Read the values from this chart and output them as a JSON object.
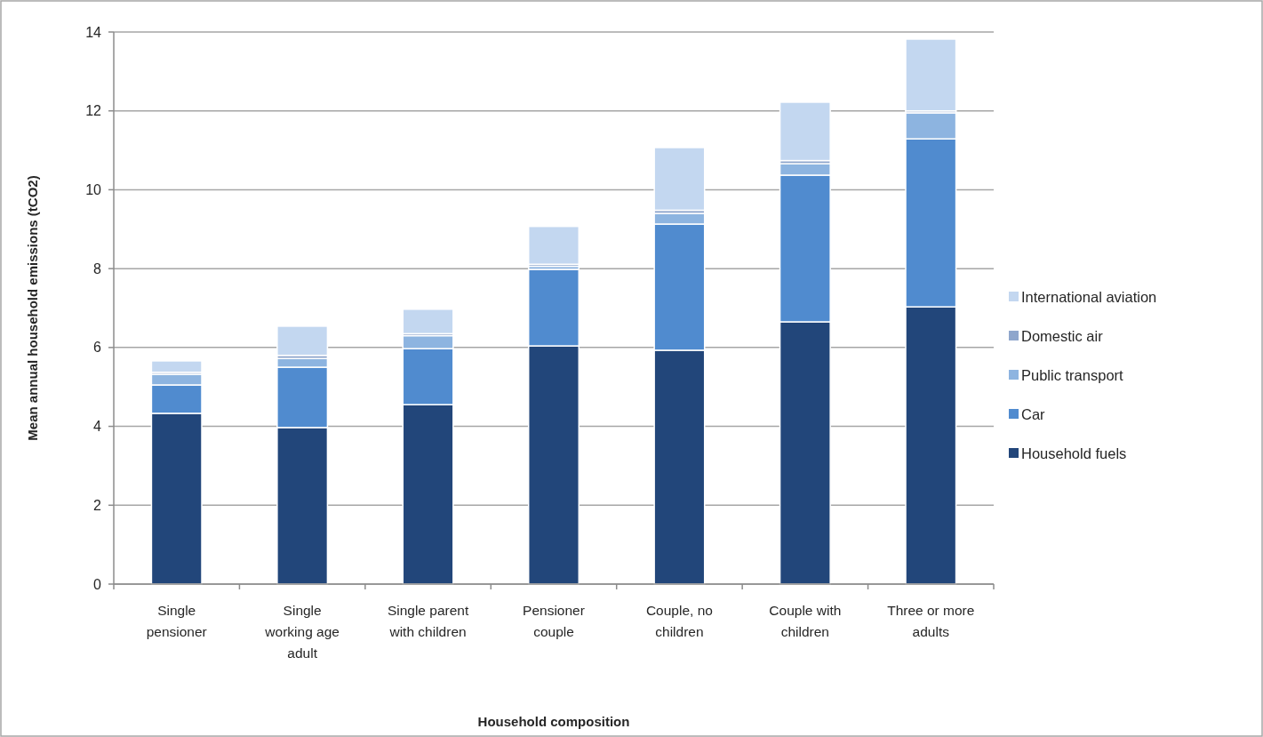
{
  "chart_data": {
    "type": "bar",
    "stacked": true,
    "xlabel": "Household composition",
    "ylabel": "Mean annual household emissions (tCO2)",
    "categories": [
      "Single pensioner",
      "Single working age adult",
      "Single parent with children",
      "Pensioner couple",
      "Couple, no children",
      "Couple with children",
      "Three or more adults"
    ],
    "series": [
      {
        "name": "Household fuels",
        "color": "#22467a",
        "values": [
          4.33,
          3.97,
          4.55,
          6.04,
          5.93,
          6.65,
          7.03
        ]
      },
      {
        "name": "Car",
        "color": "#508bcf",
        "values": [
          0.72,
          1.53,
          1.42,
          1.94,
          3.2,
          3.72,
          4.26
        ]
      },
      {
        "name": "Public transport",
        "color": "#8db4e0",
        "values": [
          0.27,
          0.22,
          0.33,
          0.08,
          0.27,
          0.29,
          0.66
        ]
      },
      {
        "name": "Domestic air",
        "color": "#8fa6cc",
        "values": [
          0.05,
          0.08,
          0.05,
          0.05,
          0.08,
          0.08,
          0.05
        ]
      },
      {
        "name": "International aviation",
        "color": "#c3d7f0",
        "values": [
          0.29,
          0.74,
          0.62,
          0.96,
          1.59,
          1.48,
          1.82
        ]
      }
    ],
    "ylim": [
      0,
      14
    ],
    "yticks": [
      0,
      2,
      4,
      6,
      8,
      10,
      12,
      14
    ],
    "grid": "y",
    "legend": "right"
  }
}
